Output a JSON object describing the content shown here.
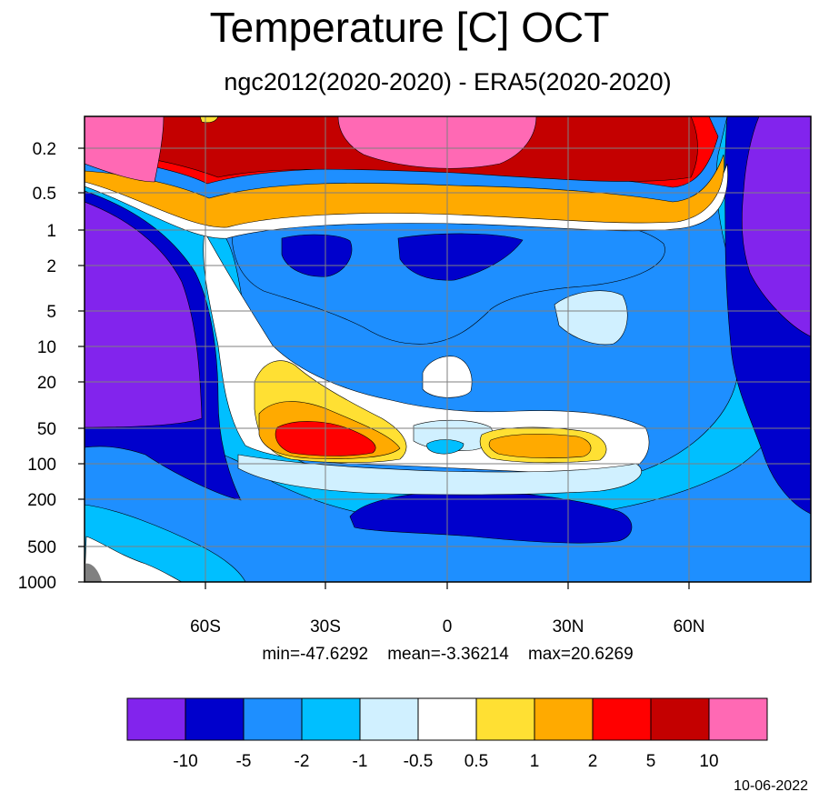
{
  "title": "Temperature [C] OCT",
  "subtitle": "ngc2012(2020-2020) - ERA5(2020-2020)",
  "stats": {
    "min": "min=-47.6292",
    "mean": "mean=-3.36214",
    "max": "max=20.6269"
  },
  "date": "10-06-2022",
  "chart_data": {
    "type": "heatmap",
    "x_axis": {
      "range": [
        -90,
        90
      ],
      "ticks": [
        -60,
        -30,
        0,
        30,
        60
      ],
      "tick_labels": [
        "60S",
        "30S",
        "0",
        "30N",
        "60N"
      ]
    },
    "y_axis": {
      "scale": "log",
      "reversed": true,
      "range": [
        1000,
        0.12
      ],
      "ticks": [
        0.2,
        0.5,
        1,
        2,
        5,
        10,
        20,
        50,
        100,
        200,
        500,
        1000
      ],
      "tick_labels": [
        "0.2",
        "0.5",
        "1",
        "2",
        "5",
        "10",
        "20",
        "50",
        "100",
        "200",
        "500",
        "1000"
      ]
    },
    "grid": true,
    "colorbar": {
      "placement": "bottom",
      "colors": [
        "#8224ed",
        "#0000cc",
        "#1e8fff",
        "#00bfff",
        "#d0f0ff",
        "#ffffff",
        "#ffe033",
        "#ffaa00",
        "#ff0000",
        "#c40000",
        "#ff69b4"
      ],
      "levels": [
        "-10",
        "-5",
        "-2",
        "-1",
        "-0.5",
        "0.5",
        "1",
        "2",
        "5",
        "10"
      ]
    }
  }
}
